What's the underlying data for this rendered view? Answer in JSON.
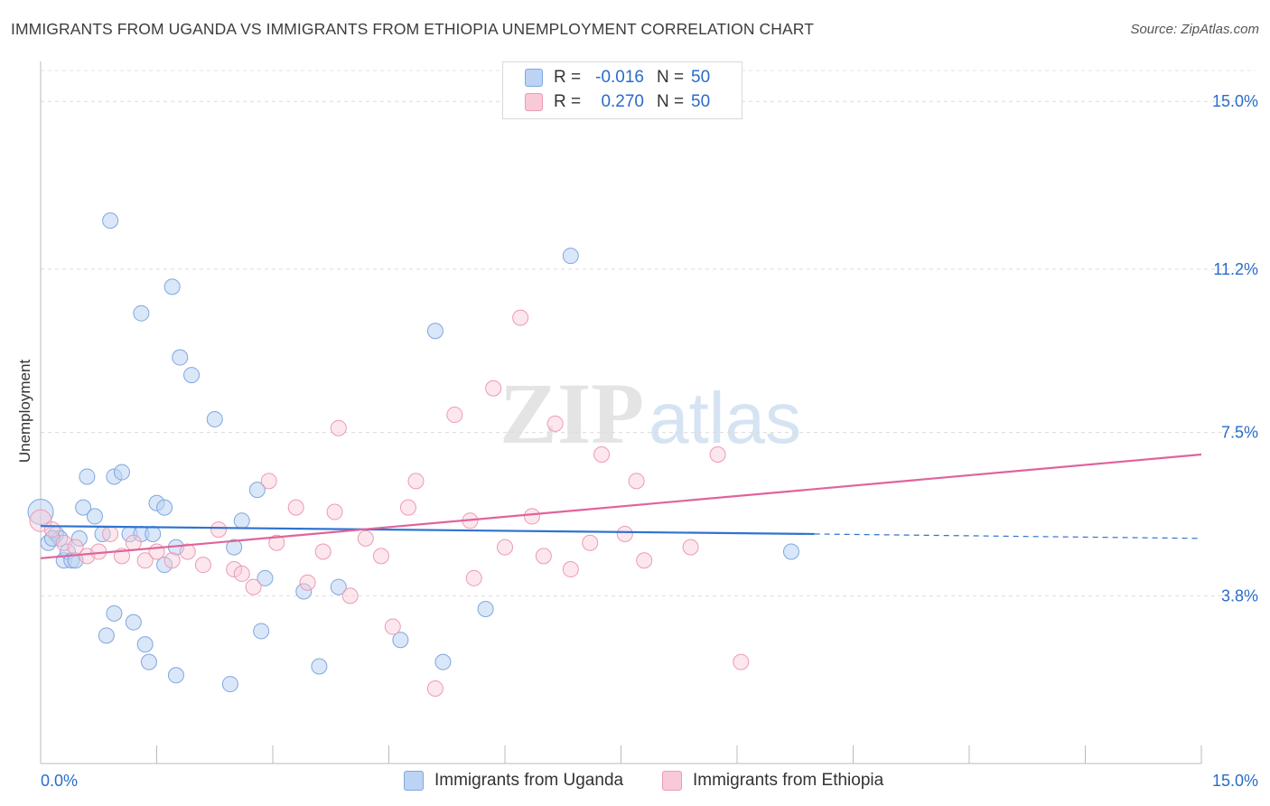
{
  "chart_data": {
    "type": "scatter",
    "title": "IMMIGRANTS FROM UGANDA VS IMMIGRANTS FROM ETHIOPIA UNEMPLOYMENT CORRELATION CHART",
    "source": "Source: ZipAtlas.com",
    "ylabel": "Unemployment",
    "xlabel": "",
    "xlim": [
      0,
      15
    ],
    "ylim": [
      0,
      15.7
    ],
    "x_tick_labels": [
      "0.0%",
      "15.0%"
    ],
    "y_ticks": [
      3.8,
      7.5,
      11.2,
      15.0
    ],
    "y_tick_labels": [
      "3.8%",
      "7.5%",
      "11.2%",
      "15.0%"
    ],
    "watermark": "ZIPatlas",
    "legend": {
      "rows": [
        {
          "r_label": "R =",
          "r_value": "-0.016",
          "n_label": "N =",
          "n_value": "50"
        },
        {
          "r_label": "R =",
          "r_value": "0.270",
          "n_label": "N =",
          "n_value": "50"
        }
      ]
    },
    "series": [
      {
        "name": "Immigrants from Uganda",
        "color": "#8ab4e8",
        "line_color": "#2f73cf",
        "trend": {
          "x0": 0,
          "y0": 5.38,
          "x1": 10.0,
          "y1": 5.2,
          "dash_x1": 15.0,
          "dash_y1": 5.1
        },
        "points": [
          [
            0.0,
            5.7
          ],
          [
            0.1,
            5.0
          ],
          [
            0.2,
            5.2
          ],
          [
            0.25,
            5.1
          ],
          [
            0.3,
            4.6
          ],
          [
            0.35,
            4.8
          ],
          [
            0.4,
            4.6
          ],
          [
            0.45,
            4.6
          ],
          [
            0.55,
            5.8
          ],
          [
            0.6,
            6.5
          ],
          [
            0.7,
            5.6
          ],
          [
            0.8,
            5.2
          ],
          [
            0.95,
            6.5
          ],
          [
            1.05,
            6.6
          ],
          [
            1.15,
            5.2
          ],
          [
            0.9,
            12.3
          ],
          [
            1.3,
            10.2
          ],
          [
            1.3,
            5.2
          ],
          [
            1.45,
            5.2
          ],
          [
            1.5,
            5.9
          ],
          [
            1.6,
            5.8
          ],
          [
            1.6,
            4.5
          ],
          [
            1.75,
            4.9
          ],
          [
            1.7,
            10.8
          ],
          [
            1.8,
            9.2
          ],
          [
            1.95,
            8.8
          ],
          [
            2.25,
            7.8
          ],
          [
            2.5,
            4.9
          ],
          [
            0.85,
            2.9
          ],
          [
            0.95,
            3.4
          ],
          [
            1.2,
            3.2
          ],
          [
            1.35,
            2.7
          ],
          [
            1.4,
            2.3
          ],
          [
            1.75,
            2.0
          ],
          [
            2.45,
            1.8
          ],
          [
            2.6,
            5.5
          ],
          [
            2.8,
            6.2
          ],
          [
            2.85,
            3.0
          ],
          [
            2.9,
            4.2
          ],
          [
            3.4,
            3.9
          ],
          [
            3.6,
            2.2
          ],
          [
            3.85,
            4.0
          ],
          [
            4.65,
            2.8
          ],
          [
            5.1,
            9.8
          ],
          [
            5.2,
            2.3
          ],
          [
            5.75,
            3.5
          ],
          [
            6.85,
            11.5
          ],
          [
            9.7,
            4.8
          ],
          [
            0.15,
            5.1
          ],
          [
            0.5,
            5.1
          ]
        ]
      },
      {
        "name": "Immigrants from Ethiopia",
        "color": "#f2a7be",
        "line_color": "#e0649a",
        "trend": {
          "x0": 0,
          "y0": 4.65,
          "x1": 15.0,
          "y1": 7.0
        },
        "points": [
          [
            0.0,
            5.5
          ],
          [
            0.15,
            5.3
          ],
          [
            0.3,
            5.0
          ],
          [
            0.45,
            4.9
          ],
          [
            0.6,
            4.7
          ],
          [
            0.75,
            4.8
          ],
          [
            0.9,
            5.2
          ],
          [
            1.05,
            4.7
          ],
          [
            1.2,
            5.0
          ],
          [
            1.35,
            4.6
          ],
          [
            1.5,
            4.8
          ],
          [
            1.7,
            4.6
          ],
          [
            1.9,
            4.8
          ],
          [
            2.1,
            4.5
          ],
          [
            2.3,
            5.3
          ],
          [
            2.5,
            4.4
          ],
          [
            2.6,
            4.3
          ],
          [
            2.75,
            4.0
          ],
          [
            2.95,
            6.4
          ],
          [
            3.05,
            5.0
          ],
          [
            3.3,
            5.8
          ],
          [
            3.45,
            4.1
          ],
          [
            3.65,
            4.8
          ],
          [
            3.8,
            5.7
          ],
          [
            3.85,
            7.6
          ],
          [
            4.0,
            3.8
          ],
          [
            4.2,
            5.1
          ],
          [
            4.4,
            4.7
          ],
          [
            4.55,
            3.1
          ],
          [
            4.75,
            5.8
          ],
          [
            4.85,
            6.4
          ],
          [
            5.1,
            1.7
          ],
          [
            5.35,
            7.9
          ],
          [
            5.55,
            5.5
          ],
          [
            5.6,
            4.2
          ],
          [
            5.85,
            8.5
          ],
          [
            6.0,
            4.9
          ],
          [
            6.2,
            10.1
          ],
          [
            6.35,
            5.6
          ],
          [
            6.5,
            4.7
          ],
          [
            6.65,
            7.7
          ],
          [
            6.85,
            4.4
          ],
          [
            7.1,
            5.0
          ],
          [
            7.25,
            7.0
          ],
          [
            7.55,
            5.2
          ],
          [
            7.7,
            6.4
          ],
          [
            7.8,
            4.6
          ],
          [
            8.4,
            4.9
          ],
          [
            8.75,
            7.0
          ],
          [
            9.05,
            2.3
          ]
        ]
      }
    ]
  }
}
